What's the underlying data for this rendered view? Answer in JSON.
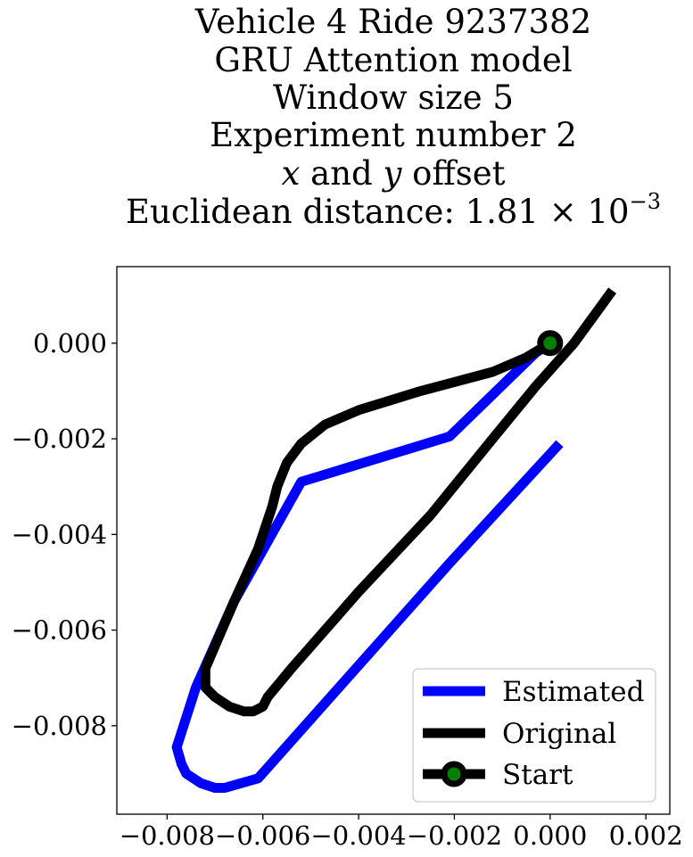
{
  "chart_data": {
    "type": "line",
    "title_lines": [
      "Vehicle 4 Ride 9237382",
      "GRU Attention model",
      "Window size 5",
      "Experiment number 2",
      "x and y offset",
      "Euclidean distance: 1.81 × 10"
    ],
    "title_exponent": "−3",
    "xlim": [
      -0.00905,
      0.0025
    ],
    "ylim": [
      -0.00985,
      0.0016
    ],
    "x_ticks": [
      -0.008,
      -0.006,
      -0.004,
      -0.002,
      0.0,
      0.002
    ],
    "x_tick_labels": [
      "−0.008",
      "−0.006",
      "−0.004",
      "−0.002",
      "0.000",
      "0.002"
    ],
    "y_ticks": [
      0.0,
      -0.002,
      -0.004,
      -0.006,
      -0.008
    ],
    "y_tick_labels": [
      "0.000",
      "−0.002",
      "−0.004",
      "−0.006",
      "−0.008"
    ],
    "grid": false,
    "legend_position": "lower-right",
    "series": [
      {
        "name": "Estimated",
        "color": "#0000ff",
        "points": [
          [
            0.0002,
            -0.0021
          ],
          [
            -0.0021,
            -0.0046
          ],
          [
            -0.0061,
            -0.0091
          ],
          [
            -0.0068,
            -0.0093
          ],
          [
            -0.007,
            -0.0093
          ],
          [
            -0.0073,
            -0.0092
          ],
          [
            -0.0076,
            -0.009
          ],
          [
            -0.0077,
            -0.0088
          ],
          [
            -0.0078,
            -0.00845
          ],
          [
            -0.0074,
            -0.0072
          ],
          [
            -0.0066,
            -0.0054
          ],
          [
            -0.0052,
            -0.0029
          ],
          [
            -0.0021,
            -0.00195
          ],
          [
            -0.0003,
            -0.0002
          ],
          [
            0.0,
            0.0
          ]
        ]
      },
      {
        "name": "Original",
        "color": "#000000",
        "points": [
          [
            0.0013,
            0.0011
          ],
          [
            0.0005,
            0.0
          ],
          [
            -0.0003,
            -0.0009
          ],
          [
            -0.0012,
            -0.002
          ],
          [
            -0.0025,
            -0.0036
          ],
          [
            -0.004,
            -0.0052
          ],
          [
            -0.0054,
            -0.0068
          ],
          [
            -0.0059,
            -0.0074
          ],
          [
            -0.006,
            -0.0076
          ],
          [
            -0.0062,
            -0.0077
          ],
          [
            -0.0064,
            -0.0077
          ],
          [
            -0.0067,
            -0.0076
          ],
          [
            -0.007,
            -0.0074
          ],
          [
            -0.0072,
            -0.0072
          ],
          [
            -0.0072,
            -0.0068
          ],
          [
            -0.0066,
            -0.0054
          ],
          [
            -0.0061,
            -0.0043
          ],
          [
            -0.0058,
            -0.0034
          ],
          [
            -0.0057,
            -0.003
          ],
          [
            -0.0055,
            -0.0025
          ],
          [
            -0.0052,
            -0.0021
          ],
          [
            -0.0047,
            -0.0017
          ],
          [
            -0.004,
            -0.0014
          ],
          [
            -0.0027,
            -0.001
          ],
          [
            -0.0012,
            -0.0006
          ],
          [
            -0.0005,
            -0.0003
          ],
          [
            0.0,
            0.0
          ]
        ]
      }
    ],
    "start_marker": {
      "name": "Start",
      "x": 0.0,
      "y": 0.0,
      "edge_color": "#000000",
      "face_color": "#008000"
    }
  }
}
